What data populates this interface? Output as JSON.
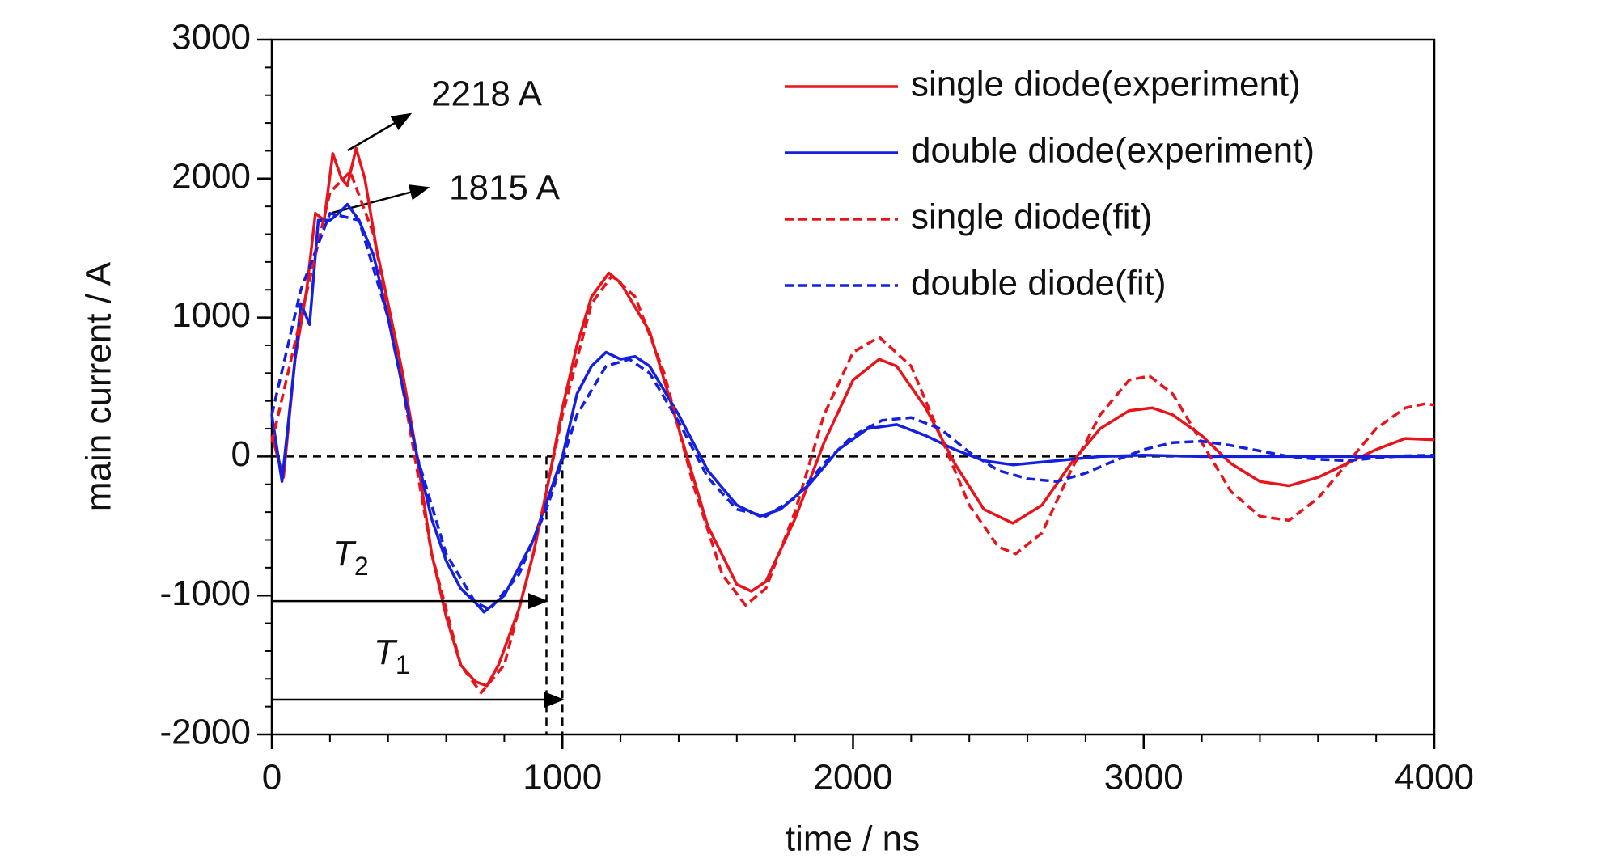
{
  "chart_data": {
    "type": "line",
    "xlabel": "time / ns",
    "ylabel": "main current / A",
    "xlim": [
      0,
      4000
    ],
    "xticks": [
      0,
      1000,
      2000,
      3000,
      4000
    ],
    "ylim": [
      -2000,
      3000
    ],
    "yticks": [
      -2000,
      -1000,
      0,
      1000,
      2000,
      3000
    ],
    "minor_step": 200,
    "reference_lines": {
      "x": [
        945,
        1000
      ],
      "y": [
        0
      ]
    },
    "annotations": [
      {
        "text": "2218 A"
      },
      {
        "text": "1815 A"
      },
      {
        "text": "T",
        "sub": "2",
        "y": -1040
      },
      {
        "text": "T",
        "sub": "1",
        "y": -1750
      }
    ],
    "legend": "upper right",
    "series": [
      {
        "name": "single diode(experiment)",
        "color": "#e8141c",
        "dash": false,
        "x": [
          0,
          40,
          80,
          120,
          150,
          180,
          210,
          240,
          260,
          290,
          320,
          360,
          400,
          450,
          500,
          550,
          600,
          650,
          700,
          740,
          780,
          850,
          900,
          950,
          1000,
          1050,
          1100,
          1160,
          1200,
          1300,
          1400,
          1500,
          1600,
          1650,
          1700,
          1800,
          1900,
          2000,
          2090,
          2150,
          2250,
          2350,
          2450,
          2550,
          2650,
          2750,
          2850,
          2950,
          3030,
          3100,
          3200,
          3300,
          3400,
          3500,
          3600,
          3700,
          3800,
          3900,
          4000
        ],
        "values": [
          150,
          -150,
          700,
          1200,
          1750,
          1700,
          2180,
          2000,
          1950,
          2218,
          2000,
          1500,
          1100,
          600,
          0,
          -700,
          -1150,
          -1500,
          -1620,
          -1650,
          -1500,
          -1100,
          -700,
          -200,
          350,
          800,
          1150,
          1320,
          1250,
          900,
          200,
          -500,
          -920,
          -970,
          -900,
          -450,
          100,
          550,
          700,
          650,
          350,
          -50,
          -380,
          -480,
          -350,
          -50,
          200,
          330,
          350,
          300,
          150,
          -50,
          -180,
          -210,
          -150,
          -50,
          50,
          130,
          120
        ]
      },
      {
        "name": "double diode(experiment)",
        "color": "#1420e0",
        "dash": false,
        "x": [
          0,
          35,
          70,
          100,
          130,
          160,
          200,
          230,
          260,
          300,
          350,
          400,
          450,
          500,
          550,
          600,
          650,
          700,
          730,
          800,
          900,
          1000,
          1050,
          1100,
          1150,
          1200,
          1250,
          1300,
          1400,
          1500,
          1600,
          1680,
          1750,
          1850,
          1950,
          2050,
          2150,
          2250,
          2350,
          2450,
          2550,
          2700,
          2850,
          3000,
          3200,
          3500,
          4000
        ],
        "values": [
          300,
          -180,
          500,
          1100,
          950,
          1700,
          1700,
          1750,
          1815,
          1700,
          1450,
          1000,
          500,
          0,
          -450,
          -750,
          -950,
          -1050,
          -1120,
          -1000,
          -600,
          0,
          450,
          650,
          750,
          700,
          720,
          650,
          300,
          -100,
          -350,
          -430,
          -380,
          -200,
          50,
          200,
          230,
          150,
          50,
          -30,
          -60,
          -30,
          0,
          10,
          0,
          0,
          0
        ]
      },
      {
        "name": "single diode(fit)",
        "color": "#e8141c",
        "dash": true,
        "x": [
          0,
          100,
          200,
          270,
          350,
          450,
          550,
          650,
          720,
          800,
          900,
          1000,
          1100,
          1170,
          1250,
          1350,
          1450,
          1550,
          1630,
          1700,
          1800,
          1900,
          2000,
          2090,
          2200,
          2300,
          2400,
          2500,
          2560,
          2650,
          2750,
          2850,
          2950,
          3020,
          3100,
          3200,
          3300,
          3400,
          3500,
          3600,
          3700,
          3800,
          3900,
          3970,
          4000
        ],
        "values": [
          100,
          1000,
          1900,
          2050,
          1600,
          500,
          -700,
          -1500,
          -1700,
          -1500,
          -700,
          300,
          1100,
          1300,
          1150,
          600,
          -200,
          -850,
          -1070,
          -950,
          -400,
          300,
          750,
          860,
          650,
          150,
          -350,
          -650,
          -700,
          -550,
          -100,
          300,
          550,
          580,
          450,
          100,
          -250,
          -430,
          -460,
          -300,
          -50,
          200,
          350,
          380,
          370
        ]
      },
      {
        "name": "double diode(fit)",
        "color": "#1420e0",
        "dash": true,
        "x": [
          0,
          100,
          200,
          300,
          400,
          500,
          600,
          700,
          750,
          850,
          950,
          1050,
          1150,
          1230,
          1300,
          1400,
          1500,
          1600,
          1700,
          1800,
          1900,
          2000,
          2100,
          2200,
          2300,
          2400,
          2500,
          2600,
          2700,
          2800,
          2900,
          3000,
          3100,
          3200,
          3300,
          3400,
          3500,
          3600,
          3700,
          3800,
          3900,
          4000
        ],
        "values": [
          300,
          1200,
          1750,
          1700,
          1000,
          0,
          -700,
          -1050,
          -1100,
          -850,
          -350,
          300,
          650,
          700,
          600,
          250,
          -150,
          -380,
          -430,
          -300,
          -50,
          150,
          260,
          280,
          200,
          30,
          -100,
          -160,
          -180,
          -120,
          -30,
          50,
          100,
          110,
          80,
          40,
          0,
          -20,
          -30,
          -10,
          5,
          10
        ]
      }
    ]
  }
}
